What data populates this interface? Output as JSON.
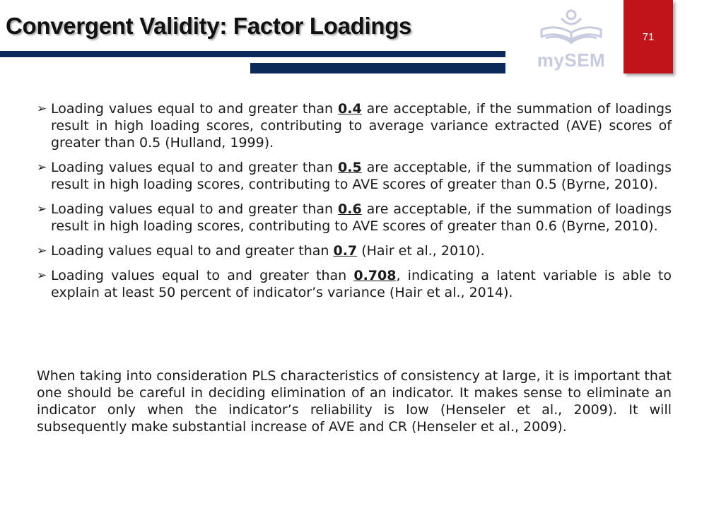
{
  "slide": {
    "title": "Convergent Validity: Factor Loadings",
    "page_number": "71",
    "logo_text": "mySEM"
  },
  "bullets": [
    {
      "before": "Loading values equal to and greater than ",
      "value": "0.4",
      "after": " are acceptable, if the summation of loadings result in high loading scores, contributing to average variance extracted (AVE) scores of greater than 0.5 (Hulland, 1999)."
    },
    {
      "before": "Loading values equal to and greater than ",
      "value": "0.5",
      "after": " are acceptable, if the summation of loadings result in high loading scores, contributing to AVE scores of greater than 0.5 (Byrne, 2010)."
    },
    {
      "before": "Loading values equal to and greater than ",
      "value": "0.6",
      "after": " are acceptable, if the summation of loadings result in high loading scores, contributing to AVE scores of greater than 0.6 (Byrne, 2010)."
    },
    {
      "before": "Loading values equal to and greater than ",
      "value": "0.7",
      "after": " (Hair et al., 2010)."
    },
    {
      "before": "Loading values equal to and greater than ",
      "value": "0.708",
      "after": ", indicating a latent variable is able to explain at least 50 percent of indicator’s variance (Hair et al., 2014)."
    }
  ],
  "paragraph": "When taking into consideration PLS characteristics of consistency at large, it is important that one should be careful in deciding elimination of an indicator. It makes sense to eliminate an indicator only when the indicator’s reliability is low (Henseler et al., 2009). It will subsequently make substantial increase of AVE and CR (Henseler et al., 2009).",
  "icons": {
    "bullet_marker": "arrowhead-icon",
    "logo": "open-book-person-icon"
  },
  "colors": {
    "title_bar": "#0b2a5b",
    "page_box": "#c0141a",
    "logo": "#c7cbe0"
  }
}
